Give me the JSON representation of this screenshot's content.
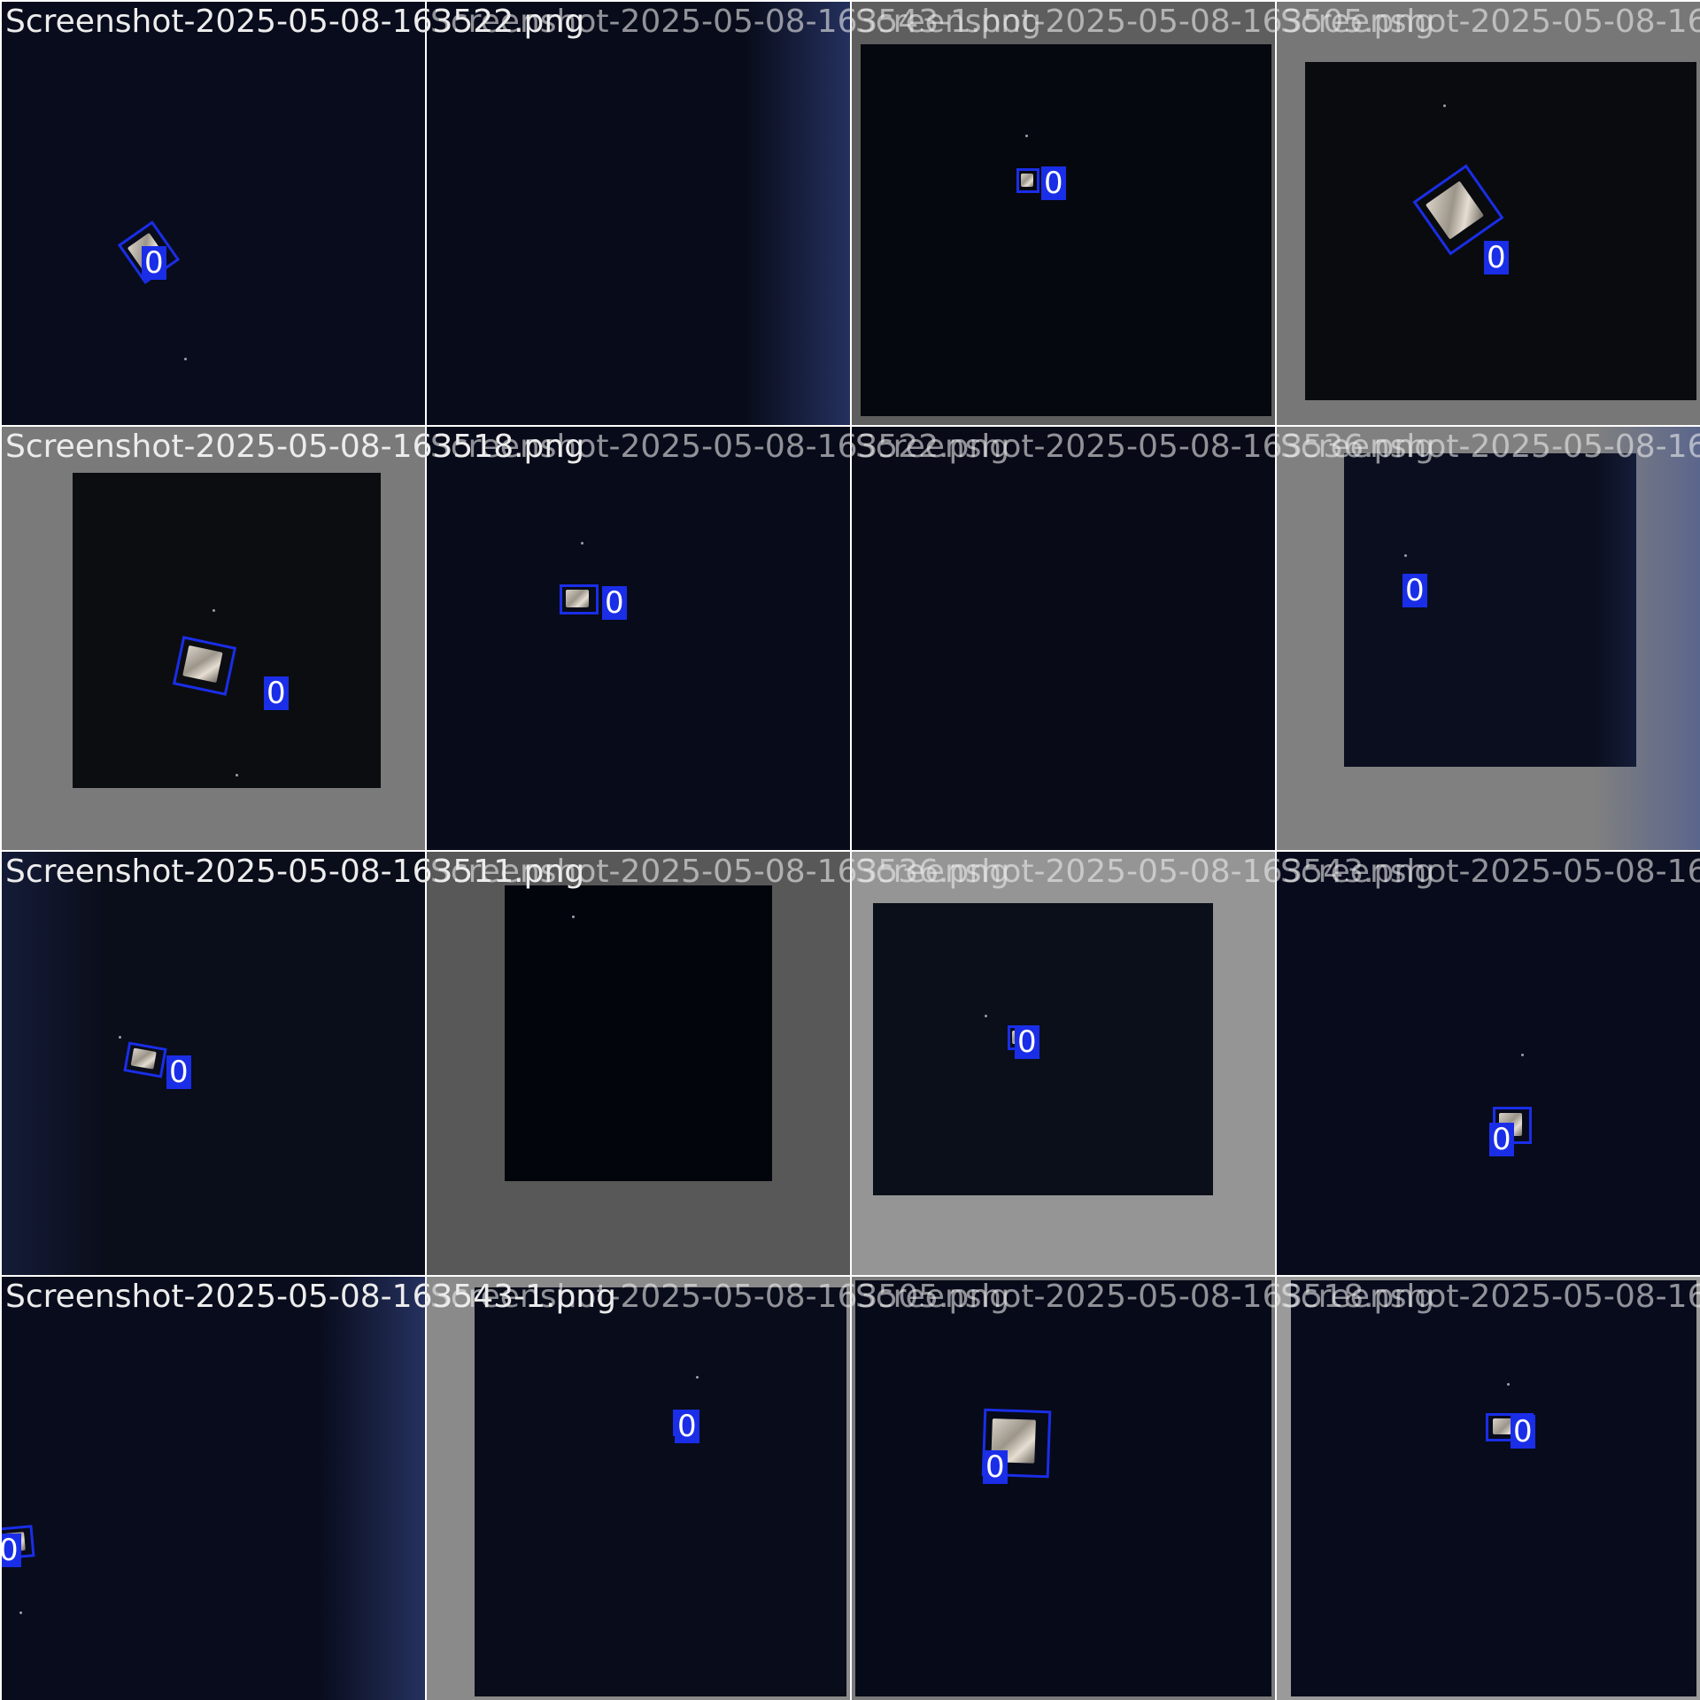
{
  "grid": {
    "columns": 4,
    "rows": 4,
    "caption_color": "#ececec",
    "box_color": "#1a2ee8",
    "label_text_color": "#ffffff"
  },
  "cells": [
    {
      "caption": "Screenshot-2025-05-08-163522.png",
      "tile": "#090c1c",
      "frame": null,
      "label": "0",
      "glow": null
    },
    {
      "caption": "Screenshot-2025-05-08-163543-1.png",
      "tile": "#080b1a",
      "frame": null,
      "label": null,
      "glow": "right"
    },
    {
      "caption": "Screenshot-2025-05-08-163505.png",
      "tile": "#5e5e5e",
      "frame": "#06080f",
      "label": "0",
      "glow": null
    },
    {
      "caption": "Screenshot-2025-05-08-163",
      "tile": "#777777",
      "frame": "#0a0b0e",
      "label": "0",
      "glow": null
    },
    {
      "caption": "Screenshot-2025-05-08-163518.png",
      "tile": "#7a7a7a",
      "frame": "#0c0d10",
      "label": "0",
      "glow": null
    },
    {
      "caption": "Screenshot-2025-05-08-163522.png",
      "tile": "#080b1a",
      "frame": null,
      "label": "0",
      "glow": null
    },
    {
      "caption": "Screenshot-2025-05-08-163536.png",
      "tile": "#080a17",
      "frame": null,
      "label": null,
      "glow": null
    },
    {
      "caption": "Screenshot-2025-05-08-163",
      "tile": "#808080",
      "frame": "#0a0e1e",
      "label": "0",
      "glow": "right"
    },
    {
      "caption": "Screenshot-2025-05-08-163511.png",
      "tile": "#0a0d1a",
      "frame": null,
      "label": "0",
      "glow": "left"
    },
    {
      "caption": "Screenshot-2025-05-08-163536.png",
      "tile": "#585858",
      "frame": "#03050c",
      "label": null,
      "glow": null
    },
    {
      "caption": "Screenshot-2025-05-08-163543.png",
      "tile": "#959595",
      "frame": "#0b0f1a",
      "label": "0",
      "glow": null
    },
    {
      "caption": "Screenshot-2025-05-08-163",
      "tile": "#080b1c",
      "frame": null,
      "label": "0",
      "glow": null
    },
    {
      "caption": "Screenshot-2025-05-08-163543-1.png",
      "tile": "#090c1c",
      "frame": null,
      "label": "0",
      "glow": "right"
    },
    {
      "caption": "Screenshot-2025-05-08-163505.png",
      "tile": "#8a8a8a",
      "frame": "#090c1a",
      "label": "0",
      "glow": null
    },
    {
      "caption": "Screenshot-2025-05-08-163518.png",
      "tile": "#7a7a7a",
      "frame": "#070a18",
      "label": "0",
      "glow": null
    },
    {
      "caption": "Screenshot-2025-05-08-163",
      "tile": "#9a9a9a",
      "frame": "#080b1c",
      "label": "0",
      "glow": null
    }
  ]
}
